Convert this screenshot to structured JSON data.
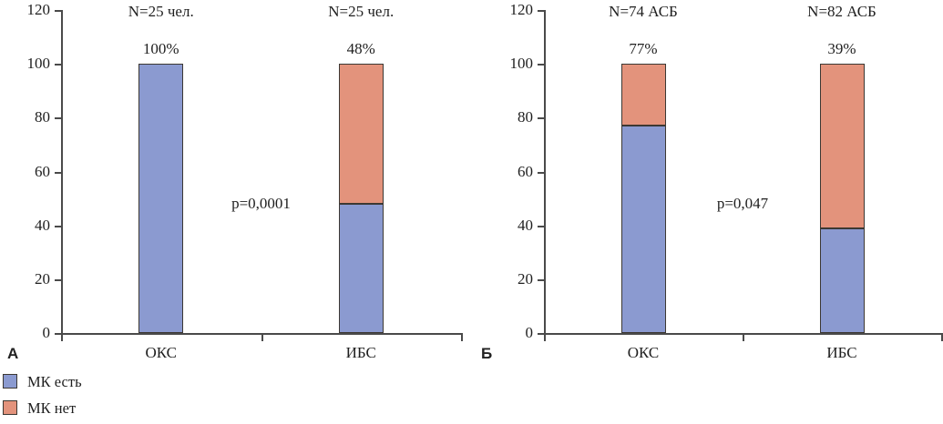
{
  "figure_title": "",
  "legend": {
    "items": [
      {
        "label": "МК есть",
        "color": "#8b9ad0"
      },
      {
        "label": "МК нет",
        "color": "#e3937c"
      }
    ]
  },
  "chart_data": [
    {
      "panel": "А",
      "type": "bar",
      "stacked": true,
      "categories": [
        "ОКС",
        "ИБС"
      ],
      "series": [
        {
          "name": "МК есть",
          "color": "#8b9ad0",
          "values": [
            100,
            48
          ]
        },
        {
          "name": "МК нет",
          "color": "#e3937c",
          "values": [
            0,
            52
          ]
        }
      ],
      "n_labels": [
        "N=25 чел.",
        "N=25 чел."
      ],
      "bar_top_labels": [
        "100%",
        "48%"
      ],
      "p_label": "p=0,0001",
      "ylim": [
        0,
        120
      ],
      "yticks": [
        0,
        20,
        40,
        60,
        80,
        100,
        120
      ],
      "grid": false,
      "xlabel": "",
      "ylabel": ""
    },
    {
      "panel": "Б",
      "type": "bar",
      "stacked": true,
      "categories": [
        "ОКС",
        "ИБС"
      ],
      "series": [
        {
          "name": "МК есть",
          "color": "#8b9ad0",
          "values": [
            77,
            39
          ]
        },
        {
          "name": "МК нет",
          "color": "#e3937c",
          "values": [
            23,
            61
          ]
        }
      ],
      "n_labels": [
        "N=74 АСБ",
        "N=82 АСБ"
      ],
      "bar_top_labels": [
        "77%",
        "39%"
      ],
      "p_label": "p=0,047",
      "ylim": [
        0,
        120
      ],
      "yticks": [
        0,
        20,
        40,
        60,
        80,
        100,
        120
      ],
      "grid": false,
      "xlabel": "",
      "ylabel": ""
    }
  ]
}
